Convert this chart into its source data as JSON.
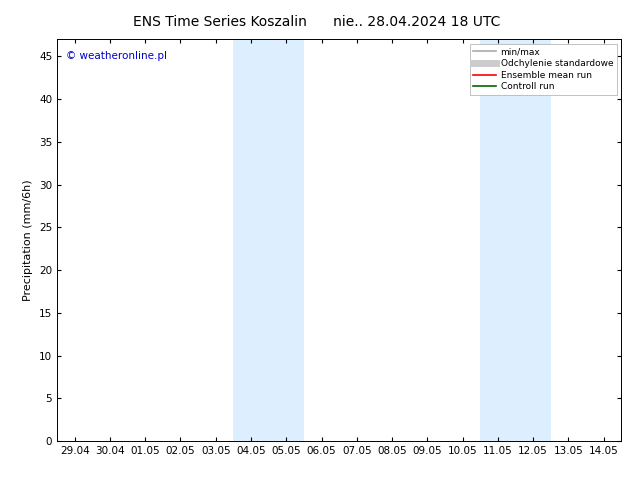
{
  "title": "ENS Time Series Koszalin      nie.. 28.04.2024 18 UTC",
  "ylabel": "Precipitation (mm/6h)",
  "watermark": "© weatheronline.pl",
  "watermark_color": "#0000cc",
  "x_labels": [
    "29.04",
    "30.04",
    "01.05",
    "02.05",
    "03.05",
    "04.05",
    "05.05",
    "06.05",
    "07.05",
    "08.05",
    "09.05",
    "10.05",
    "11.05",
    "12.05",
    "13.05",
    "14.05"
  ],
  "x_positions": [
    0,
    1,
    2,
    3,
    4,
    5,
    6,
    7,
    8,
    9,
    10,
    11,
    12,
    13,
    14,
    15
  ],
  "ylim": [
    0,
    47
  ],
  "yticks": [
    0,
    5,
    10,
    15,
    20,
    25,
    30,
    35,
    40,
    45
  ],
  "shaded_regions": [
    {
      "x_start": 4.5,
      "x_end": 6.5
    },
    {
      "x_start": 11.5,
      "x_end": 13.5
    }
  ],
  "shaded_color": "#ddeeff",
  "bg_color": "#ffffff",
  "legend_items": [
    {
      "label": "min/max",
      "color": "#aaaaaa",
      "lw": 1.2,
      "ls": "-"
    },
    {
      "label": "Odchylenie standardowe",
      "color": "#cccccc",
      "lw": 5,
      "ls": "-"
    },
    {
      "label": "Ensemble mean run",
      "color": "#ff0000",
      "lw": 1.2,
      "ls": "-"
    },
    {
      "label": "Controll run",
      "color": "#006600",
      "lw": 1.2,
      "ls": "-"
    }
  ],
  "title_fontsize": 10,
  "axis_fontsize": 8,
  "tick_fontsize": 7.5,
  "xlim_left": -0.5,
  "xlim_right": 15.5
}
